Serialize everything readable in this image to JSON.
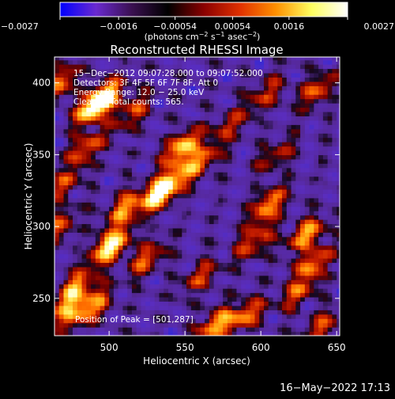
{
  "chart_data": {
    "type": "heatmap",
    "title": "Reconstructed RHESSI Image",
    "xlabel": "Heliocentric X (arcsec)",
    "ylabel": "Heliocentric Y (arcsec)",
    "xlim": [
      464,
      652
    ],
    "ylim": [
      224,
      418
    ],
    "x_ticks": [
      500,
      550,
      600,
      650
    ],
    "y_ticks": [
      250,
      300,
      350,
      400
    ],
    "x_tick_labels": [
      "500",
      "550",
      "600",
      "650"
    ],
    "y_tick_labels": [
      "250",
      "300",
      "350",
      "400"
    ],
    "colorbar": {
      "range": [
        -0.0027,
        0.0027
      ],
      "ticks": [
        -0.0027,
        -0.0016,
        -0.00054,
        0.00054,
        0.0016,
        0.0027
      ],
      "tick_labels": [
        "−0.0027",
        "−0.0016",
        "−0.00054",
        "0.00054",
        "0.0016",
        "0.0027"
      ],
      "units_main": "(photons cm",
      "units_exp1": "−2",
      "units_mid": " s",
      "units_exp2": "−1",
      "units_mid2": " asec",
      "units_exp3": "−2",
      "units_end": ")",
      "colors": [
        "#0000ff",
        "#6a2ad0",
        "#3a1050",
        "#000000",
        "#8a0000",
        "#e03000",
        "#ff9000",
        "#ffff60",
        "#ffffff"
      ]
    },
    "annotations": [
      "15−Dec−2012 09:07:28.000 to 09:07:52.000",
      "Detectors: 3F 4F 5F 6F 7F 8F, Att 0",
      "Energy Range: 12.0 − 25.0 keV",
      "Clean     Total counts: 565."
    ],
    "peak_label": "Position of Peak = [501,287]",
    "peak": [
      501,
      287
    ],
    "grid": false,
    "sources": [
      {
        "x": 501,
        "y": 287,
        "amp": 1.0
      },
      {
        "x": 478,
        "y": 258,
        "amp": 0.7
      },
      {
        "x": 488,
        "y": 244,
        "amp": 0.75
      },
      {
        "x": 510,
        "y": 313,
        "amp": 0.65
      },
      {
        "x": 548,
        "y": 355,
        "amp": 0.85
      },
      {
        "x": 560,
        "y": 345,
        "amp": 0.6
      },
      {
        "x": 532,
        "y": 322,
        "amp": 0.7
      },
      {
        "x": 540,
        "y": 330,
        "amp": 0.6
      },
      {
        "x": 605,
        "y": 315,
        "amp": 0.7
      },
      {
        "x": 630,
        "y": 295,
        "amp": 0.7
      },
      {
        "x": 635,
        "y": 275,
        "amp": 0.6
      },
      {
        "x": 596,
        "y": 290,
        "amp": 0.55
      },
      {
        "x": 468,
        "y": 400,
        "amp": 0.6
      },
      {
        "x": 490,
        "y": 384,
        "amp": 0.8
      },
      {
        "x": 497,
        "y": 390,
        "amp": 0.7
      },
      {
        "x": 485,
        "y": 355,
        "amp": 0.55
      },
      {
        "x": 525,
        "y": 278,
        "amp": 0.55
      },
      {
        "x": 590,
        "y": 238,
        "amp": 0.6
      },
      {
        "x": 570,
        "y": 232,
        "amp": 0.7
      },
      {
        "x": 560,
        "y": 265,
        "amp": 0.45
      },
      {
        "x": 625,
        "y": 255,
        "amp": 0.5
      },
      {
        "x": 637,
        "y": 395,
        "amp": 0.55
      },
      {
        "x": 603,
        "y": 393,
        "amp": 0.45
      },
      {
        "x": 515,
        "y": 380,
        "amp": 0.5
      },
      {
        "x": 467,
        "y": 300,
        "amp": 0.5
      },
      {
        "x": 470,
        "y": 240,
        "amp": 0.55
      },
      {
        "x": 640,
        "y": 230,
        "amp": 0.5
      },
      {
        "x": 580,
        "y": 370,
        "amp": 0.4
      },
      {
        "x": 610,
        "y": 350,
        "amp": 0.4
      },
      {
        "x": 470,
        "y": 330,
        "amp": 0.45
      }
    ]
  },
  "footer": {
    "timestamp": "16−May−2022 17:13"
  }
}
